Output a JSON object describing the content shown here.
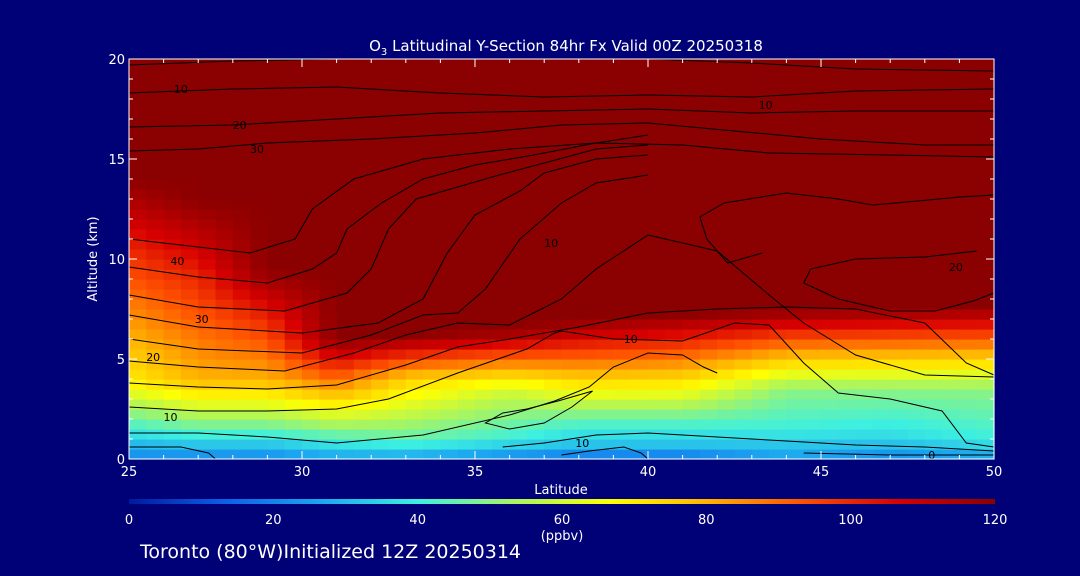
{
  "chart_data": {
    "type": "heatmap",
    "title_prefix": "O",
    "title_subscript": "3",
    "title_rest": " Latitudinal Y-Section 84hr  Fx Valid 00Z 20250318",
    "xlabel": "Latitude",
    "ylabel": "Altitude (km)",
    "xlim": [
      25,
      50
    ],
    "ylim": [
      0,
      20
    ],
    "x_ticks": [
      25,
      30,
      35,
      40,
      45,
      50
    ],
    "y_ticks": [
      0,
      5,
      10,
      15,
      20
    ],
    "colorbar": {
      "min": 0,
      "max": 120,
      "ticks": [
        0,
        20,
        40,
        60,
        80,
        100,
        120
      ],
      "label": "(ppbv)",
      "colors": [
        "#001a9e",
        "#0d5fe8",
        "#1ca7f0",
        "#3df0e0",
        "#a8f560",
        "#ffff00",
        "#ffb400",
        "#ff5000",
        "#d70000",
        "#8b0000"
      ]
    },
    "ozone_field": [
      {
        "lat": 25,
        "boundaries": [
          [
            0,
            20
          ],
          [
            1.5,
            40
          ],
          [
            4,
            70
          ],
          [
            10.5,
            100
          ],
          [
            14,
            120
          ]
        ]
      },
      {
        "lat": 27,
        "boundaries": [
          [
            0,
            20
          ],
          [
            1.5,
            45
          ],
          [
            4,
            80
          ],
          [
            9,
            100
          ],
          [
            11,
            110
          ],
          [
            13,
            120
          ]
        ]
      },
      {
        "lat": 29,
        "boundaries": [
          [
            0,
            20
          ],
          [
            1.5,
            45
          ],
          [
            4,
            80
          ],
          [
            7,
            100
          ],
          [
            9.5,
            120
          ]
        ]
      },
      {
        "lat": 31,
        "boundaries": [
          [
            0,
            25
          ],
          [
            1.5,
            50
          ],
          [
            4,
            90
          ],
          [
            6,
            120
          ]
        ]
      },
      {
        "lat": 33,
        "boundaries": [
          [
            0,
            25
          ],
          [
            1,
            45
          ],
          [
            4,
            75
          ],
          [
            6.2,
            120
          ]
        ]
      },
      {
        "lat": 36,
        "boundaries": [
          [
            0,
            20
          ],
          [
            1,
            40
          ],
          [
            3.5,
            60
          ],
          [
            6.5,
            120
          ]
        ]
      },
      {
        "lat": 38,
        "boundaries": [
          [
            0,
            15
          ],
          [
            0.6,
            30
          ],
          [
            2,
            45
          ],
          [
            7,
            120
          ]
        ]
      },
      {
        "lat": 41,
        "boundaries": [
          [
            0,
            15
          ],
          [
            0.6,
            30
          ],
          [
            2,
            45
          ],
          [
            7.3,
            120
          ]
        ]
      },
      {
        "lat": 44,
        "boundaries": [
          [
            0,
            25
          ],
          [
            1.5,
            40
          ],
          [
            3.5,
            50
          ],
          [
            7.5,
            120
          ]
        ]
      },
      {
        "lat": 47,
        "boundaries": [
          [
            0,
            20
          ],
          [
            1,
            35
          ],
          [
            3.5,
            50
          ],
          [
            7.6,
            120
          ]
        ]
      },
      {
        "lat": 50,
        "boundaries": [
          [
            0,
            25
          ],
          [
            1,
            40
          ],
          [
            3.5,
            50
          ],
          [
            7.7,
            120
          ]
        ]
      }
    ],
    "contours": [
      {
        "points": [
          [
            25,
            0.6
          ],
          [
            26.5,
            0.6
          ],
          [
            27.3,
            0.3
          ],
          [
            27.5,
            0
          ]
        ]
      },
      {
        "points": [
          [
            25,
            1.3
          ],
          [
            27,
            1.3
          ],
          [
            29,
            1.1
          ],
          [
            31,
            0.8
          ],
          [
            33.5,
            1.2
          ],
          [
            36,
            2.2
          ],
          [
            37.3,
            2.9
          ],
          [
            38.3,
            3.6
          ],
          [
            39,
            4.6
          ],
          [
            40,
            5.3
          ],
          [
            41,
            5.2
          ],
          [
            41.6,
            4.6
          ],
          [
            42,
            4.3
          ]
        ]
      },
      {
        "points": [
          [
            25,
            2.6
          ],
          [
            27,
            2.4
          ],
          [
            29,
            2.4
          ],
          [
            31,
            2.5
          ],
          [
            32.5,
            3
          ],
          [
            34.5,
            4.3
          ],
          [
            36.5,
            5.5
          ],
          [
            37.3,
            6.3
          ],
          [
            37.5,
            6.4
          ],
          [
            39,
            6
          ],
          [
            41,
            5.9
          ],
          [
            42.5,
            6.8
          ],
          [
            43.5,
            6.7
          ],
          [
            44.5,
            4.8
          ],
          [
            45.5,
            3.3
          ],
          [
            47,
            3
          ],
          [
            48.5,
            2.4
          ],
          [
            49.2,
            0.8
          ],
          [
            50,
            0.6
          ]
        ]
      },
      {
        "points": [
          [
            25,
            3.8
          ],
          [
            27,
            3.6
          ],
          [
            29,
            3.5
          ],
          [
            31,
            3.7
          ],
          [
            33,
            4.7
          ],
          [
            34.5,
            5.6
          ],
          [
            36,
            6
          ],
          [
            38,
            6.6
          ],
          [
            40,
            7.3
          ],
          [
            42,
            7.5
          ],
          [
            44,
            7.6
          ],
          [
            46,
            7.5
          ],
          [
            48,
            6.8
          ],
          [
            49.2,
            4.8
          ],
          [
            50,
            4.2
          ]
        ]
      },
      {
        "points": [
          [
            25,
            4.9
          ],
          [
            27,
            4.6
          ],
          [
            29.5,
            4.4
          ],
          [
            31.5,
            5.3
          ],
          [
            33,
            6.2
          ],
          [
            34.5,
            6.8
          ],
          [
            36,
            6.7
          ],
          [
            37.5,
            8
          ],
          [
            38.5,
            9.5
          ],
          [
            40,
            11.2
          ],
          [
            41,
            10.8
          ],
          [
            42,
            10.4
          ],
          [
            43.5,
            8.2
          ],
          [
            44.5,
            6.8
          ],
          [
            46,
            5.2
          ],
          [
            48,
            4.2
          ],
          [
            50,
            4.1
          ]
        ]
      },
      {
        "points": [
          [
            25,
            6
          ],
          [
            27,
            5.5
          ],
          [
            30,
            5.3
          ],
          [
            32,
            6.2
          ],
          [
            33.5,
            7.2
          ],
          [
            34.5,
            7.3
          ],
          [
            35.3,
            8.5
          ],
          [
            36.3,
            11
          ],
          [
            37.5,
            12.8
          ],
          [
            38.5,
            13.8
          ],
          [
            40,
            14.2
          ]
        ]
      },
      {
        "points": [
          [
            25,
            7.2
          ],
          [
            27,
            6.6
          ],
          [
            30,
            6.3
          ],
          [
            32.2,
            6.8
          ],
          [
            33.5,
            8
          ],
          [
            34.2,
            10.3
          ],
          [
            35,
            12.2
          ],
          [
            36.3,
            13.4
          ],
          [
            37,
            14.3
          ],
          [
            38.5,
            15
          ],
          [
            40,
            15.2
          ]
        ]
      },
      {
        "points": [
          [
            25,
            8.2
          ],
          [
            27,
            7.6
          ],
          [
            29.5,
            7.4
          ],
          [
            31.3,
            8.3
          ],
          [
            32,
            9.5
          ],
          [
            32.5,
            11.5
          ],
          [
            33.3,
            13
          ],
          [
            34.5,
            13.6
          ],
          [
            35.7,
            14.2
          ],
          [
            37,
            14.8
          ],
          [
            38.5,
            15.5
          ],
          [
            40,
            15.7
          ]
        ]
      },
      {
        "points": [
          [
            25,
            9.6
          ],
          [
            27,
            9.1
          ],
          [
            29,
            8.8
          ],
          [
            30.3,
            9.5
          ],
          [
            31,
            10.3
          ],
          [
            31.3,
            11.5
          ],
          [
            32.3,
            12.8
          ],
          [
            33.5,
            14
          ],
          [
            35,
            14.7
          ],
          [
            36.7,
            15.2
          ],
          [
            38.5,
            15.8
          ],
          [
            40,
            16.2
          ]
        ]
      },
      {
        "points": [
          [
            25,
            11
          ],
          [
            27,
            10.6
          ],
          [
            28.5,
            10.3
          ],
          [
            29.8,
            11
          ],
          [
            30.3,
            12.5
          ],
          [
            31.5,
            14
          ],
          [
            33.5,
            15
          ],
          [
            36,
            15.5
          ],
          [
            38.5,
            15.8
          ],
          [
            41,
            15.7
          ],
          [
            43.5,
            15.3
          ],
          [
            47,
            15.2
          ],
          [
            50,
            15.1
          ]
        ]
      },
      {
        "points": [
          [
            25,
            15.4
          ],
          [
            27,
            15.5
          ],
          [
            29,
            15.8
          ],
          [
            32,
            16
          ],
          [
            35,
            16.3
          ],
          [
            37.5,
            16.7
          ],
          [
            40,
            16.8
          ],
          [
            42.5,
            16.4
          ],
          [
            45,
            16
          ],
          [
            48,
            15.7
          ],
          [
            50,
            15.7
          ]
        ]
      },
      {
        "points": [
          [
            25,
            16.6
          ],
          [
            28,
            16.7
          ],
          [
            31,
            17
          ],
          [
            34,
            17.3
          ],
          [
            37,
            17.4
          ],
          [
            40,
            17.5
          ],
          [
            43,
            17.3
          ],
          [
            46,
            17.4
          ],
          [
            50,
            17.4
          ]
        ]
      },
      {
        "points": [
          [
            25,
            18.3
          ],
          [
            28,
            18.5
          ],
          [
            31,
            18.6
          ],
          [
            34,
            18.3
          ],
          [
            37,
            18.1
          ],
          [
            40,
            18.2
          ],
          [
            43,
            18.1
          ],
          [
            46,
            18.4
          ],
          [
            50,
            18.5
          ]
        ]
      },
      {
        "points": [
          [
            25,
            19.7
          ],
          [
            28,
            19.9
          ],
          [
            31,
            20
          ],
          [
            40,
            20
          ],
          [
            43,
            19.8
          ],
          [
            46,
            19.5
          ],
          [
            50,
            19.4
          ]
        ]
      },
      {
        "points": [
          [
            49.5,
            10.4
          ],
          [
            48,
            10.1
          ],
          [
            46,
            10
          ],
          [
            44.7,
            9.5
          ],
          [
            44.5,
            8.8
          ],
          [
            45.5,
            8
          ],
          [
            47,
            7.4
          ],
          [
            48.3,
            7.4
          ],
          [
            49.4,
            7.9
          ],
          [
            50,
            8.3
          ]
        ]
      },
      {
        "points": [
          [
            43.3,
            10.3
          ],
          [
            42.3,
            9.8
          ],
          [
            41.7,
            11
          ],
          [
            41.5,
            12.1
          ],
          [
            42.2,
            12.8
          ],
          [
            44,
            13.3
          ],
          [
            45.5,
            13
          ],
          [
            46.5,
            12.7
          ],
          [
            47.8,
            12.9
          ],
          [
            49,
            13.1
          ],
          [
            50,
            13.2
          ]
        ]
      },
      {
        "points": [
          [
            36.5,
            2.5
          ],
          [
            37.4,
            2.9
          ],
          [
            38.4,
            3.4
          ],
          [
            37.8,
            2.6
          ],
          [
            37,
            1.8
          ],
          [
            36,
            1.5
          ],
          [
            35.3,
            1.8
          ],
          [
            35.8,
            2.3
          ],
          [
            36.5,
            2.5
          ]
        ]
      },
      {
        "points": [
          [
            35.8,
            0.6
          ],
          [
            37,
            0.8
          ],
          [
            38.5,
            1.2
          ],
          [
            40,
            1.3
          ],
          [
            42,
            1.1
          ],
          [
            44,
            0.9
          ],
          [
            46,
            0.7
          ],
          [
            48,
            0.6
          ],
          [
            50,
            0.4
          ]
        ]
      },
      {
        "points": [
          [
            37.5,
            0.2
          ],
          [
            38.3,
            0.4
          ],
          [
            39.3,
            0.6
          ],
          [
            39.8,
            0.3
          ],
          [
            40,
            0
          ]
        ]
      },
      {
        "points": [
          [
            44.5,
            0.3
          ],
          [
            47,
            0.2
          ],
          [
            50,
            0.2
          ]
        ]
      }
    ],
    "contour_labels": [
      {
        "text": "10",
        "x": 26.5,
        "y": 18.5
      },
      {
        "text": "20",
        "x": 28.2,
        "y": 16.7
      },
      {
        "text": "30",
        "x": 28.7,
        "y": 15.5
      },
      {
        "text": "10",
        "x": 43.4,
        "y": 17.7
      },
      {
        "text": "10",
        "x": 37.2,
        "y": 10.8
      },
      {
        "text": "20",
        "x": 48.9,
        "y": 9.6
      },
      {
        "text": "40",
        "x": 26.4,
        "y": 9.9
      },
      {
        "text": "30",
        "x": 27.1,
        "y": 7
      },
      {
        "text": "20",
        "x": 25.7,
        "y": 5.1
      },
      {
        "text": "10",
        "x": 26.2,
        "y": 2.1
      },
      {
        "text": "10",
        "x": 39.5,
        "y": 6
      },
      {
        "text": "10",
        "x": 38.1,
        "y": 0.8
      },
      {
        "text": "0",
        "x": 48.2,
        "y": 0.2
      }
    ]
  },
  "footer": {
    "text": "Toronto (80°W)Initialized 12Z 20250314"
  }
}
